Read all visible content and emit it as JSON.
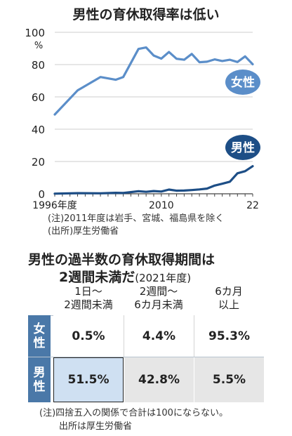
{
  "chart_data": [
    {
      "type": "line",
      "title": "男性の育休取得率は低い",
      "x_tick_labels": [
        "1996年度",
        "2010",
        "22"
      ],
      "y_ticks": [
        0,
        20,
        40,
        60,
        80,
        100
      ],
      "y_unit": "%",
      "ylim": [
        0,
        100
      ],
      "x": [
        1996,
        1999,
        2002,
        2004,
        2005,
        2007,
        2008,
        2009,
        2010,
        2011,
        2012,
        2013,
        2014,
        2015,
        2016,
        2017,
        2018,
        2019,
        2020,
        2021,
        2022
      ],
      "series": [
        {
          "name": "女性",
          "color": "#5b8ec9",
          "values": [
            49.1,
            64.0,
            72.3,
            70.6,
            72.3,
            89.7,
            90.6,
            85.6,
            83.7,
            87.8,
            83.6,
            83.0,
            86.6,
            81.5,
            81.8,
            83.2,
            82.2,
            83.0,
            81.6,
            85.1,
            80.2
          ]
        },
        {
          "name": "男性",
          "color": "#1d4e86",
          "values": [
            0.1,
            0.4,
            0.3,
            0.6,
            0.5,
            1.6,
            1.2,
            1.7,
            1.4,
            2.6,
            1.9,
            2.0,
            2.3,
            2.7,
            3.2,
            5.1,
            6.2,
            7.5,
            12.7,
            14.0,
            17.1
          ]
        }
      ],
      "notes": [
        "(注)2011年度は岩手、宮城、福島県を除く",
        "(出所)厚生労働省"
      ]
    },
    {
      "type": "table",
      "title_line1": "男性の過半数の育休取得期間は",
      "title_line2": "2週間未満だ",
      "title_suffix": "(2021年度)",
      "columns": [
        {
          "line1": "1日～",
          "line2": "2週間未満"
        },
        {
          "line1": "2週間～",
          "line2": "6カ月未満"
        },
        {
          "line1": "6カ月",
          "line2": "以上"
        }
      ],
      "rows": [
        {
          "label_1": "女",
          "label_2": "性",
          "values": [
            "0.5%",
            "4.4%",
            "95.3%"
          ]
        },
        {
          "label_1": "男",
          "label_2": "性",
          "values": [
            "51.5%",
            "42.8%",
            "5.5%"
          ]
        }
      ],
      "notes": [
        "(注)四捨五入の関係で合計は100にならない。",
        "出所は厚生労働省"
      ]
    }
  ]
}
